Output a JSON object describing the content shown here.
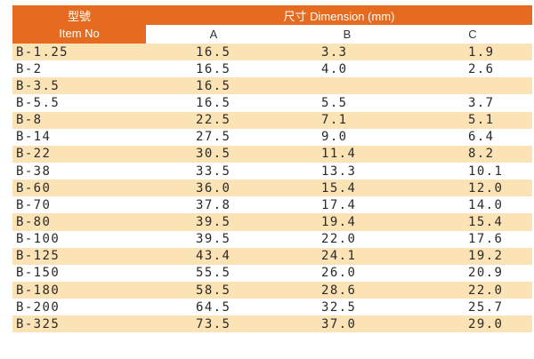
{
  "header": {
    "item_col_line1": "型號",
    "item_col_line2": "Item No",
    "dimension_title": "尺寸 Dimension (mm)",
    "col_a": "A",
    "col_b": "B",
    "col_c": "C"
  },
  "colors": {
    "header_orange": "#e46b1f",
    "stripe": "#fbe3b6"
  },
  "rows": [
    {
      "item": "B-1.25",
      "a": "16.5",
      "b": "3.3",
      "c": "1.9"
    },
    {
      "item": "B-2",
      "a": "16.5",
      "b": "4.0",
      "c": "2.6"
    },
    {
      "item": "B-3.5",
      "a": "16.5",
      "b": "",
      "c": ""
    },
    {
      "item": "B-5.5",
      "a": "16.5",
      "b": "5.5",
      "c": "3.7"
    },
    {
      "item": "B-8",
      "a": "22.5",
      "b": "7.1",
      "c": "5.1"
    },
    {
      "item": "B-14",
      "a": "27.5",
      "b": "9.0",
      "c": "6.4"
    },
    {
      "item": "B-22",
      "a": "30.5",
      "b": "11.4",
      "c": "8.2"
    },
    {
      "item": "B-38",
      "a": "33.5",
      "b": "13.3",
      "c": "10.1"
    },
    {
      "item": "B-60",
      "a": "36.0",
      "b": "15.4",
      "c": "12.0"
    },
    {
      "item": "B-70",
      "a": "37.8",
      "b": "17.4",
      "c": "14.0"
    },
    {
      "item": "B-80",
      "a": "39.5",
      "b": "19.4",
      "c": "15.4"
    },
    {
      "item": "B-100",
      "a": "39.5",
      "b": "22.0",
      "c": "17.6"
    },
    {
      "item": "B-125",
      "a": "43.4",
      "b": "24.1",
      "c": "19.2"
    },
    {
      "item": "B-150",
      "a": "55.5",
      "b": "26.0",
      "c": "20.9"
    },
    {
      "item": "B-180",
      "a": "58.5",
      "b": "28.6",
      "c": "22.0"
    },
    {
      "item": "B-200",
      "a": "64.5",
      "b": "32.5",
      "c": "25.7"
    },
    {
      "item": "B-325",
      "a": "73.5",
      "b": "37.0",
      "c": "29.0"
    }
  ]
}
